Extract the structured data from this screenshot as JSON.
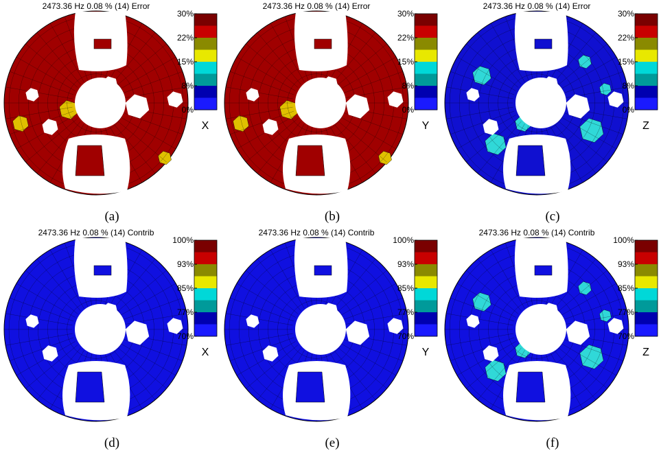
{
  "panels": [
    {
      "title": "2473.36 Hz 0.08 % (14) Error",
      "colorbar_ticks": [
        "30%",
        "22%",
        "15%",
        "8%",
        "0%"
      ],
      "component": "X",
      "caption": "(a)"
    },
    {
      "title": "2473.36 Hz 0.08 % (14) Error",
      "colorbar_ticks": [
        "30%",
        "22%",
        "15%",
        "8%",
        "0%"
      ],
      "component": "Y",
      "caption": "(b)"
    },
    {
      "title": "2473.36 Hz 0.08 % (14) Error",
      "colorbar_ticks": [
        "30%",
        "22%",
        "15%",
        "8%",
        "0%"
      ],
      "component": "Z",
      "caption": "(c)"
    },
    {
      "title": "2473.36 Hz 0.08 % (14) Contrib",
      "colorbar_ticks": [
        "100%",
        "93%",
        "85%",
        "77%",
        "70%"
      ],
      "component": "X",
      "caption": "(d)"
    },
    {
      "title": "2473.36 Hz 0.08 % (14) Contrib",
      "colorbar_ticks": [
        "100%",
        "93%",
        "85%",
        "77%",
        "70%"
      ],
      "component": "Y",
      "caption": "(e)"
    },
    {
      "title": "2473.36 Hz 0.08 % (14) Contrib",
      "colorbar_ticks": [
        "100%",
        "93%",
        "85%",
        "77%",
        "70%"
      ],
      "component": "Z",
      "caption": "(f)"
    }
  ]
}
